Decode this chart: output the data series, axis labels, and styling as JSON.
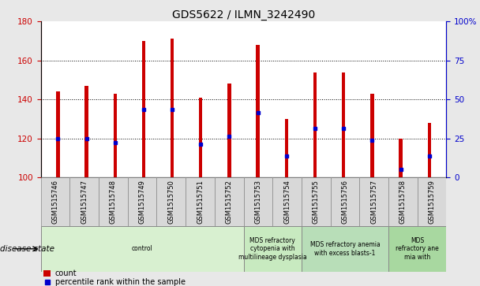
{
  "title": "GDS5622 / ILMN_3242490",
  "samples": [
    "GSM1515746",
    "GSM1515747",
    "GSM1515748",
    "GSM1515749",
    "GSM1515750",
    "GSM1515751",
    "GSM1515752",
    "GSM1515753",
    "GSM1515754",
    "GSM1515755",
    "GSM1515756",
    "GSM1515757",
    "GSM1515758",
    "GSM1515759"
  ],
  "bar_tops": [
    144,
    147,
    143,
    170,
    171,
    141,
    148,
    168,
    130,
    154,
    154,
    143,
    120,
    128
  ],
  "bar_bottoms": [
    100,
    100,
    100,
    100,
    100,
    100,
    100,
    100,
    100,
    100,
    100,
    100,
    100,
    100
  ],
  "blue_dot_values": [
    120,
    120,
    118,
    135,
    135,
    117,
    121,
    133,
    111,
    125,
    125,
    119,
    104,
    111
  ],
  "bar_color": "#cc0000",
  "dot_color": "#0000cc",
  "ylim_left": [
    100,
    180
  ],
  "ylim_right": [
    0,
    100
  ],
  "yticks_left": [
    100,
    120,
    140,
    160,
    180
  ],
  "yticks_right": [
    0,
    25,
    50,
    75,
    100
  ],
  "ytick_labels_right": [
    "0",
    "25",
    "50",
    "75",
    "100%"
  ],
  "grid_values": [
    120,
    140,
    160
  ],
  "disease_groups": [
    {
      "label": "control",
      "start": 0,
      "end": 7
    },
    {
      "label": "MDS refractory\ncytopenia with\nmultilineage dysplasia",
      "start": 7,
      "end": 9
    },
    {
      "label": "MDS refractory anemia\nwith excess blasts-1",
      "start": 9,
      "end": 12
    },
    {
      "label": "MDS\nrefractory ane\nmia with",
      "start": 12,
      "end": 14
    }
  ],
  "disease_state_label": "disease state",
  "legend_count_label": "count",
  "legend_percentile_label": "percentile rank within the sample",
  "bg_color": "#e8e8e8",
  "plot_bg": "#ffffff",
  "left_tick_color": "#cc0000",
  "right_tick_color": "#0000cc",
  "title_fontsize": 10,
  "tick_fontsize": 7.5,
  "label_fontsize": 7.5,
  "group_colors": [
    "#d8f0d0",
    "#c8eac0",
    "#b8deb8",
    "#a8d8a0"
  ],
  "sample_box_color": "#d8d8d8"
}
